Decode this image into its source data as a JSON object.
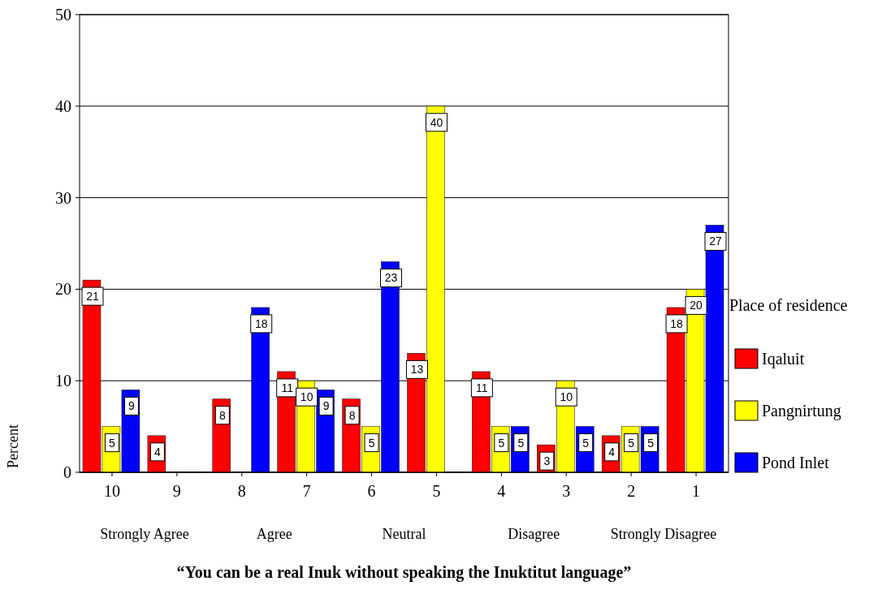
{
  "chart_data": {
    "type": "bar",
    "title": "“You can be a real Inuk without speaking the Inuktitut language”",
    "ylabel": "Percent",
    "legend_title": "Place of residence",
    "categories": [
      "10",
      "9",
      "8",
      "7",
      "6",
      "5",
      "4",
      "3",
      "2",
      "1"
    ],
    "series": [
      {
        "name": "Iqaluit",
        "color": "#ff0000",
        "values": [
          21,
          4,
          8,
          11,
          8,
          13,
          11,
          3,
          4,
          18
        ],
        "value_labels": [
          "21",
          "4",
          "8",
          "11",
          "8",
          "13",
          "11",
          "3",
          "4",
          "18"
        ]
      },
      {
        "name": "Pangnirtung",
        "color": "#ffff00",
        "values": [
          5,
          0,
          0,
          10,
          5,
          40,
          5,
          10,
          5,
          20
        ],
        "value_labels": [
          "5",
          null,
          null,
          "10",
          "5",
          "40",
          "5",
          "10",
          "5",
          "20"
        ]
      },
      {
        "name": "Pond Inlet",
        "color": "#0000ff",
        "values": [
          9,
          0,
          18,
          9,
          23,
          0,
          5,
          5,
          5,
          27
        ],
        "value_labels": [
          "9",
          null,
          "18",
          "9",
          "23",
          null,
          "5",
          "5",
          "5",
          "27"
        ]
      }
    ],
    "annotations": [
      "Strongly Agree",
      "Agree",
      "Neutral",
      "Disagree",
      "Strongly Disagree"
    ],
    "ylim": [
      0,
      50
    ],
    "yticks": [
      0,
      10,
      20,
      30,
      40,
      50
    ],
    "grid": "y",
    "legend": "right"
  }
}
